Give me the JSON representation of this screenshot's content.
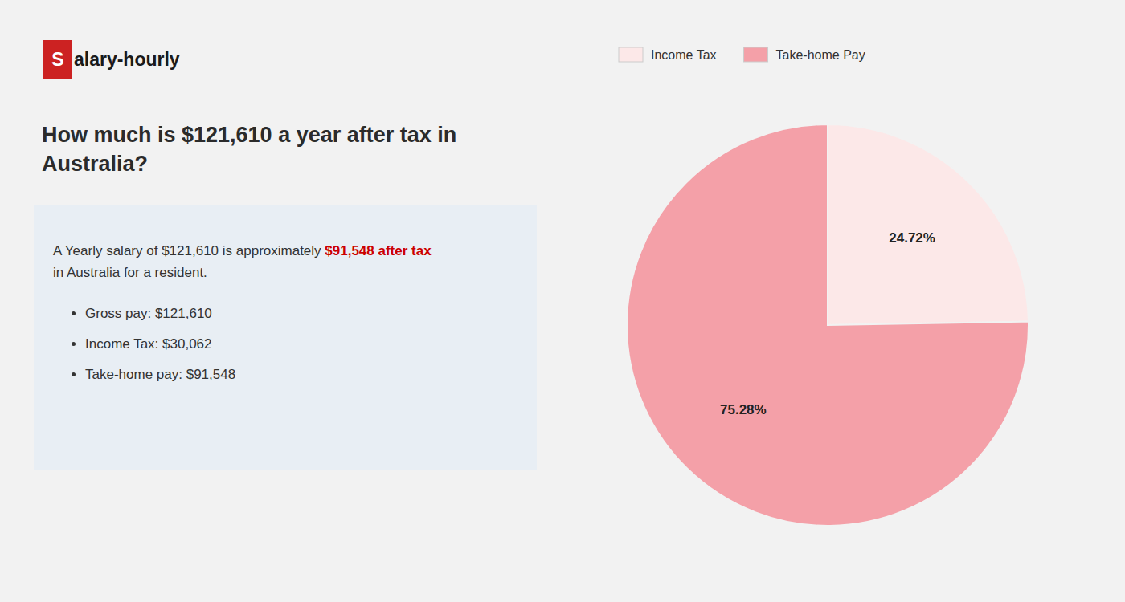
{
  "chart_data": {
    "type": "pie",
    "title": "How much is $121,610 a year after tax in Australia?",
    "annotations": [
      "S",
      "alary-hourly",
      "A Yearly salary of $121,610 is approximately ",
      "$91,548 after tax",
      "in Australia for a resident.",
      "Gross pay: $121,610",
      "Income Tax: $30,062",
      "Take-home pay: $91,548"
    ],
    "categories": [
      "Income Tax",
      "Take-home Pay"
    ],
    "values": [
      24.72,
      75.28
    ],
    "value_labels": [
      "24.72%",
      "75.28%"
    ],
    "colors": [
      "#fce8e8",
      "#f4a0a8"
    ],
    "data_labels": true,
    "legend": "top"
  }
}
